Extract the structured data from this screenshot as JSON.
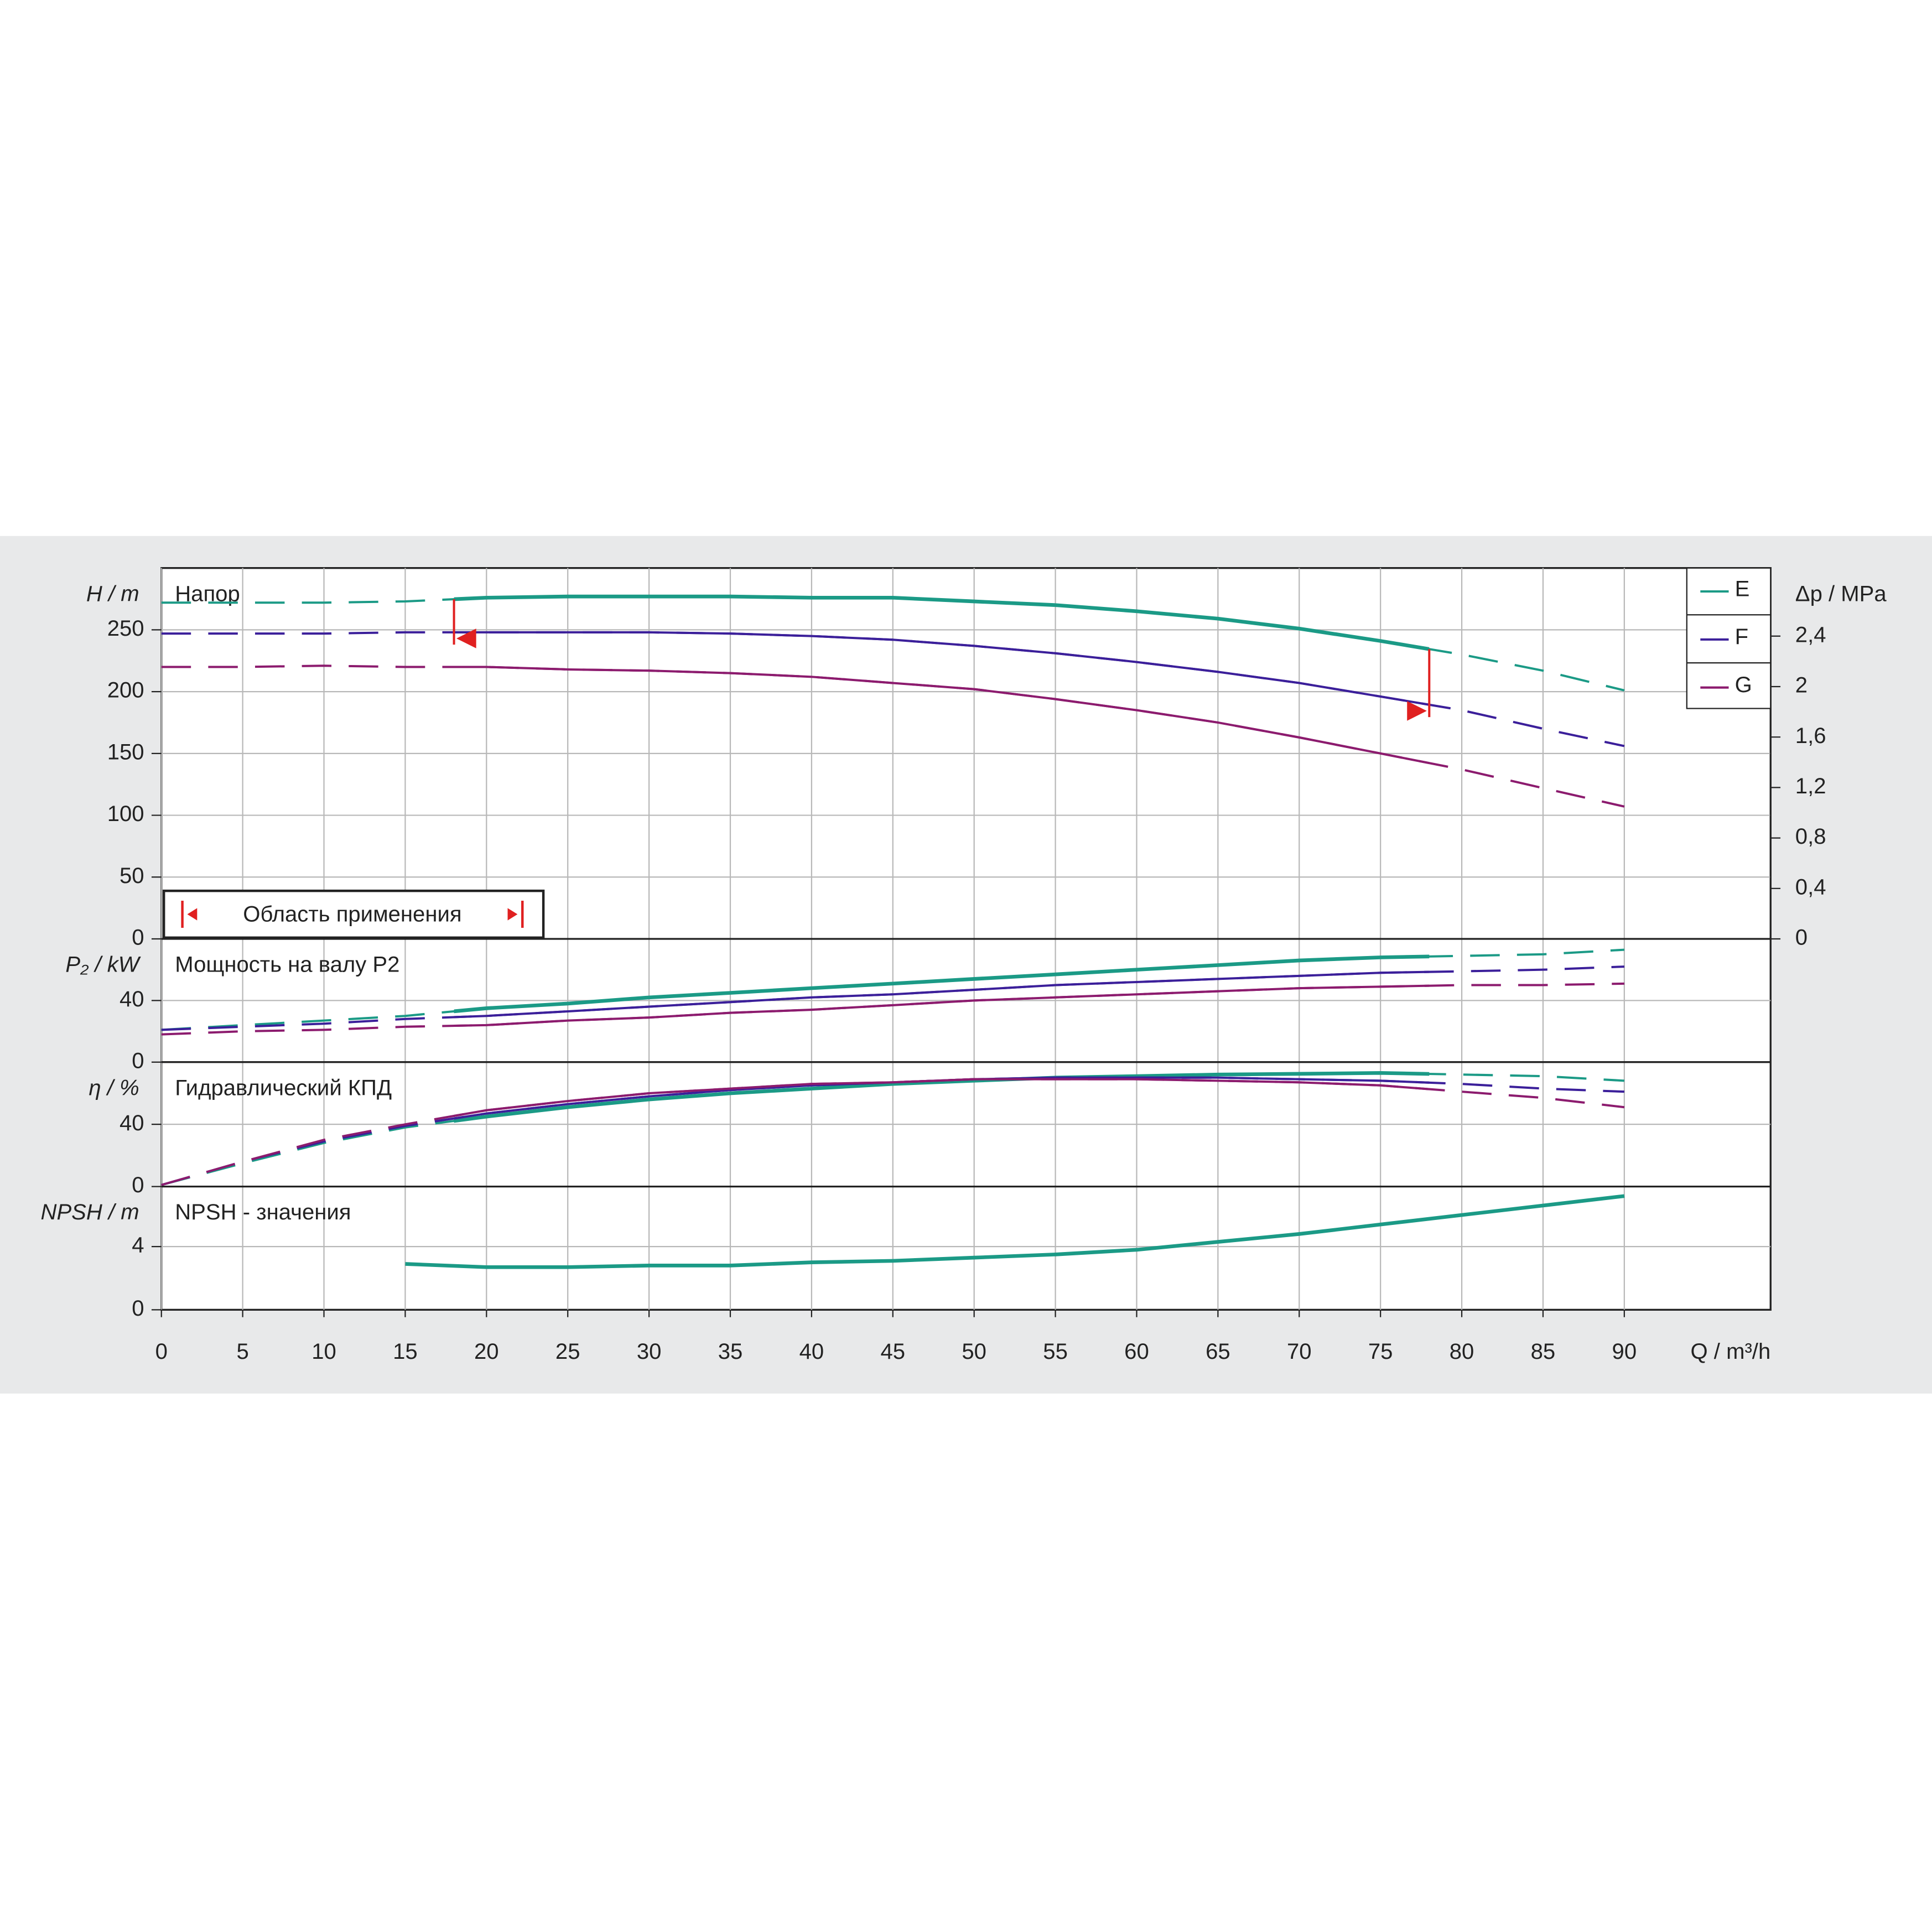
{
  "chart_data": {
    "type": "line",
    "xlabel": "Q / m³/h",
    "xlim": [
      0,
      99
    ],
    "xticks": [
      0,
      5,
      10,
      15,
      20,
      25,
      30,
      35,
      40,
      45,
      50,
      55,
      60,
      65,
      70,
      75,
      80,
      85,
      90
    ],
    "x": [
      0,
      5,
      10,
      15,
      20,
      25,
      30,
      35,
      40,
      45,
      50,
      55,
      60,
      65,
      70,
      75,
      80,
      85,
      90
    ],
    "application_range": {
      "label": "Область применения",
      "from": 18,
      "to": 78
    },
    "grid": true,
    "panels": [
      {
        "title": "Напор",
        "ylabel": "H / m",
        "ylim": [
          0,
          300
        ],
        "yticks": [
          0,
          50,
          100,
          150,
          200,
          250
        ],
        "dash_outside_range": true,
        "y2label": "Δp / MPa",
        "y2lim": [
          0,
          2.94
        ],
        "y2ticks": [
          0,
          {
            "value": 0.4,
            "label": "0,4"
          },
          {
            "value": 0.8,
            "label": "0,8"
          },
          {
            "value": 1.2,
            "label": "1,2"
          },
          {
            "value": 1.6,
            "label": "1,6"
          },
          2,
          {
            "value": 2.4,
            "label": "2,4"
          }
        ],
        "legend": "upper right",
        "series": [
          {
            "name": "E",
            "color": "#1b9a86",
            "values": [
              272,
              272,
              272,
              273,
              276,
              277,
              277,
              277,
              276,
              276,
              273,
              270,
              265,
              259,
              251,
              241,
              230,
              217,
              201
            ]
          },
          {
            "name": "F",
            "color": "#3b1f9a",
            "values": [
              247,
              247,
              247,
              248,
              248,
              248,
              248,
              247,
              245,
              242,
              237,
              231,
              224,
              216,
              207,
              196,
              185,
              170,
              156
            ]
          },
          {
            "name": "G",
            "color": "#8c1b6e",
            "values": [
              220,
              220,
              221,
              220,
              220,
              218,
              217,
              215,
              212,
              207,
              202,
              194,
              185,
              175,
              163,
              150,
              137,
              122,
              107
            ]
          }
        ]
      },
      {
        "title": "Мощность на валу P2",
        "ylabel": "P₂ / kW",
        "ylim": [
          0,
          80
        ],
        "yticks": [
          0,
          40
        ],
        "dash_outside_range": true,
        "series": [
          {
            "name": "E",
            "color": "#1b9a86",
            "values": [
              21,
              24,
              27,
              30,
              35,
              38,
              42,
              45,
              48,
              51,
              54,
              57,
              60,
              63,
              66,
              68,
              69,
              70,
              73
            ]
          },
          {
            "name": "F",
            "color": "#3b1f9a",
            "values": [
              21,
              23,
              25,
              28,
              30,
              33,
              36,
              39,
              42,
              44,
              47,
              50,
              52,
              54,
              56,
              58,
              59,
              60,
              62
            ]
          },
          {
            "name": "G",
            "color": "#8c1b6e",
            "values": [
              18,
              20,
              21,
              23,
              24,
              27,
              29,
              32,
              34,
              37,
              40,
              42,
              44,
              46,
              48,
              49,
              50,
              50,
              51
            ]
          }
        ]
      },
      {
        "title": "Гидравлический КПД",
        "ylabel": "η / %",
        "ylim": [
          0,
          80
        ],
        "yticks": [
          0,
          40
        ],
        "dash_outside_range": true,
        "series": [
          {
            "name": "E",
            "color": "#1b9a86",
            "values": [
              1,
              15,
              28,
              38,
              45,
              51,
              56,
              60,
              63,
              66,
              68,
              70,
              71,
              72,
              72.5,
              73,
              72,
              71,
              68
            ]
          },
          {
            "name": "F",
            "color": "#3b1f9a",
            "values": [
              1,
              16,
              29,
              39,
              47,
              53,
              58,
              62,
              65,
              67,
              69,
              70,
              70,
              70,
              69,
              68,
              66,
              63,
              61
            ]
          },
          {
            "name": "G",
            "color": "#8c1b6e",
            "values": [
              1,
              16,
              30,
              40,
              49,
              55,
              60,
              63,
              66,
              67,
              69,
              69,
              69,
              68,
              67,
              65,
              61,
              57,
              51
            ]
          }
        ]
      },
      {
        "title": "NPSH - значения",
        "ylabel": "NPSH / m",
        "ylim": [
          0,
          7.8
        ],
        "yticks": [
          0,
          4
        ],
        "dash_outside_range": false,
        "series": [
          {
            "name": "E",
            "color": "#1b9a86",
            "values": [
              null,
              null,
              null,
              2.9,
              2.7,
              2.7,
              2.8,
              2.8,
              3.0,
              3.1,
              3.3,
              3.5,
              3.8,
              4.3,
              4.8,
              5.4,
              6.0,
              6.6,
              7.2
            ]
          }
        ]
      }
    ]
  }
}
